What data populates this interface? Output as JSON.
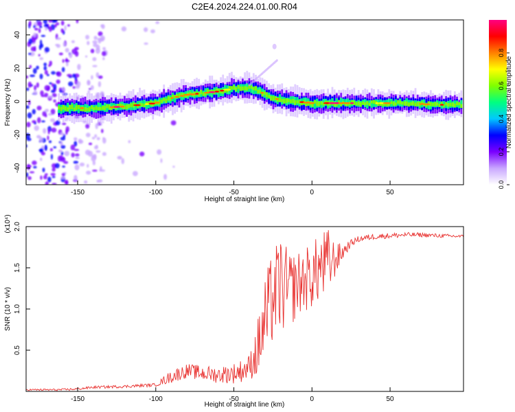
{
  "title": "C2E4.2024.224.01.00.R04",
  "chart_data": [
    {
      "type": "heatmap",
      "xlabel": "Height of straight line (km)",
      "ylabel": "Frequency (Hz)",
      "xlim": [
        -183,
        97
      ],
      "ylim": [
        -50,
        49
      ],
      "x_ticks": [
        -150,
        -100,
        -50,
        0,
        50
      ],
      "y_ticks": [
        -40,
        -20,
        0,
        20,
        40
      ],
      "colorbar": {
        "label": "Normalized spectral amplitude",
        "range": [
          0,
          1
        ],
        "ticks": [
          0.0,
          0.2,
          0.4,
          0.6,
          0.8
        ],
        "colors": [
          "#ffffff",
          "#c9a7ff",
          "#7a00ff",
          "#0000ff",
          "#00c8ff",
          "#00ff80",
          "#7fff00",
          "#ffff00",
          "#ff8000",
          "#ff0000",
          "#ff0080"
        ]
      },
      "ridge": {
        "x": [
          -183,
          -160,
          -140,
          -120,
          -100,
          -90,
          -80,
          -70,
          -60,
          -50,
          -45,
          -40,
          -35,
          -30,
          -25,
          -20,
          -10,
          0,
          10,
          20,
          40,
          60,
          80,
          97
        ],
        "y": [
          -4,
          -4,
          -4,
          -3,
          -1,
          2,
          4,
          5,
          6,
          8,
          8,
          8,
          7,
          4,
          2,
          1,
          0,
          -1,
          -1,
          -1,
          -1,
          -1,
          -2,
          -2
        ]
      },
      "branch": {
        "x": [
          -40,
          -34,
          -28,
          -22
        ],
        "y": [
          10,
          15,
          20,
          25
        ]
      },
      "grid": false,
      "legend": "colorbar-right"
    },
    {
      "type": "line",
      "xlabel": "Height of straight line (km)",
      "ylabel": "SNR (10 * v/v)",
      "multiplier": "(x10⁴)",
      "xlim": [
        -183,
        97
      ],
      "ylim": [
        0,
        2.0
      ],
      "x_ticks": [
        -150,
        -100,
        -50,
        0,
        50
      ],
      "y_ticks": [
        0.5,
        1.0,
        1.5,
        2.0
      ],
      "series_color": "#e8312f",
      "envelope": {
        "x": [
          -183,
          -160,
          -150,
          -140,
          -120,
          -100,
          -90,
          -80,
          -70,
          -60,
          -50,
          -45,
          -40,
          -35,
          -30,
          -25,
          -20,
          -15,
          -10,
          -5,
          0,
          5,
          10,
          15,
          20,
          25,
          30,
          40,
          50,
          60,
          70,
          80,
          97
        ],
        "y": [
          0.02,
          0.02,
          0.03,
          0.05,
          0.06,
          0.08,
          0.18,
          0.25,
          0.22,
          0.2,
          0.22,
          0.25,
          0.3,
          0.5,
          0.85,
          1.15,
          1.3,
          1.2,
          1.3,
          1.35,
          1.4,
          1.5,
          1.55,
          1.6,
          1.7,
          1.8,
          1.85,
          1.88,
          1.89,
          1.9,
          1.9,
          1.89,
          1.88
        ]
      },
      "spread": {
        "x": [
          -183,
          -100,
          -90,
          -60,
          -40,
          -30,
          -20,
          -10,
          0,
          10,
          15,
          20,
          25,
          97
        ],
        "y": [
          0.01,
          0.02,
          0.08,
          0.1,
          0.15,
          0.55,
          0.6,
          0.4,
          0.4,
          0.45,
          0.2,
          0.1,
          0.04,
          0.02
        ]
      },
      "grid": false
    }
  ]
}
